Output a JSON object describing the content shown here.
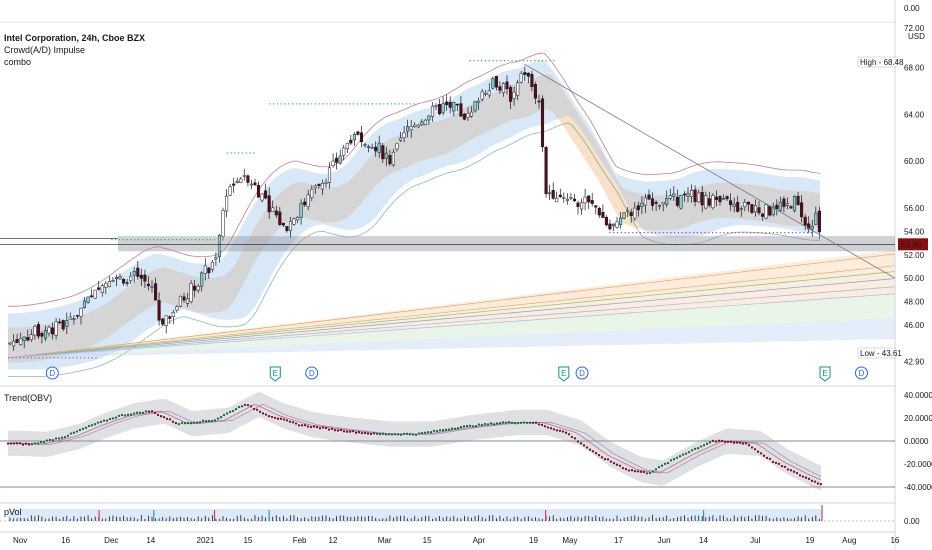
{
  "header": {
    "title": "Intel Corporation, 24h, Cboe BZX",
    "indicator_1": "Crowd(A/D) Impulse",
    "indicator_2": "combo"
  },
  "panes": {
    "trend_title": "Trend(OBV)",
    "vol_title": "pVol"
  },
  "price_axis": {
    "currency": "USD",
    "ticks": [
      "72.00",
      "68.00",
      "64.00",
      "60.00",
      "56.00",
      "54.00",
      "52.00",
      "50.00",
      "48.00",
      "46.00",
      "42.90"
    ],
    "top_tick": "0.00",
    "high_label": "High",
    "high_value": "68.48",
    "low_label": "Low",
    "low_value": "43.61",
    "last_price": "52.90",
    "last_price_color": "#880e0e"
  },
  "trend_axis": {
    "ticks": [
      "40.0000",
      "20.0000",
      "0.0000",
      "-20.0000",
      "-40.0000"
    ]
  },
  "vol_axis": {
    "ticks": [
      "0.00"
    ]
  },
  "time_axis": {
    "labels": [
      "Nov",
      "16",
      "Dec",
      "14",
      "2021",
      "15",
      "Feb",
      "12",
      "Mar",
      "15",
      "Apr",
      "19",
      "May",
      "17",
      "Jun",
      "14",
      "Jul",
      "19",
      "Aug",
      "16"
    ]
  },
  "events": [
    {
      "type": "D",
      "label": "D"
    },
    {
      "type": "E",
      "label": "E"
    },
    {
      "type": "D",
      "label": "D"
    },
    {
      "type": "E",
      "label": "E"
    },
    {
      "type": "D",
      "label": "D"
    },
    {
      "type": "E",
      "label": "E"
    },
    {
      "type": "D",
      "label": "D"
    }
  ],
  "colors": {
    "up_candle": "#ffffff",
    "up_candle_teal": "#7fd3d7",
    "down_candle": "#5c0a14",
    "band_blue": "#9cc2ea",
    "band_orange": "#f3c89a",
    "resistance_red": "#b2475c",
    "support_green": "#2c9b6a",
    "dotted_green": "#1fbf6a",
    "dotted_purple": "#b23cc0",
    "event_blue": "#2962ff",
    "event_green": "#089981"
  },
  "chart_data": [
    {
      "type": "candlestick",
      "title": "Intel Corporation, 24h, Cboe BZX",
      "ylabel": "USD",
      "x_range": [
        "2020-10-28",
        "2021-07-23"
      ],
      "ylim": [
        42.9,
        72
      ],
      "high": 68.48,
      "low": 43.61,
      "last": 52.9,
      "close_path": [
        {
          "date": "2020-10-28",
          "close": 44.4
        },
        {
          "date": "2020-11-05",
          "close": 45.3
        },
        {
          "date": "2020-11-16",
          "close": 46.0
        },
        {
          "date": "2020-11-25",
          "close": 48.4
        },
        {
          "date": "2020-12-01",
          "close": 50.3
        },
        {
          "date": "2020-12-04",
          "close": 50.0
        },
        {
          "date": "2020-12-10",
          "close": 50.2
        },
        {
          "date": "2020-12-15",
          "close": 49.0
        },
        {
          "date": "2020-12-17",
          "close": 46.2
        },
        {
          "date": "2020-12-23",
          "close": 47.8
        },
        {
          "date": "2021-01-04",
          "close": 51.5
        },
        {
          "date": "2021-01-08",
          "close": 57.5
        },
        {
          "date": "2021-01-14",
          "close": 59.0
        },
        {
          "date": "2021-01-21",
          "close": 56.6
        },
        {
          "date": "2021-01-27",
          "close": 54.2
        },
        {
          "date": "2021-02-05",
          "close": 57.2
        },
        {
          "date": "2021-02-12",
          "close": 59.5
        },
        {
          "date": "2021-02-19",
          "close": 62.6
        },
        {
          "date": "2021-02-26",
          "close": 61.4
        },
        {
          "date": "2021-03-03",
          "close": 60.0
        },
        {
          "date": "2021-03-08",
          "close": 62.5
        },
        {
          "date": "2021-03-15",
          "close": 64.0
        },
        {
          "date": "2021-03-22",
          "close": 64.8
        },
        {
          "date": "2021-03-29",
          "close": 63.6
        },
        {
          "date": "2021-04-01",
          "close": 65.6
        },
        {
          "date": "2021-04-06",
          "close": 67.0
        },
        {
          "date": "2021-04-12",
          "close": 65.4
        },
        {
          "date": "2021-04-16",
          "close": 67.7
        },
        {
          "date": "2021-04-21",
          "close": 65.0
        },
        {
          "date": "2021-04-23",
          "close": 57.5
        },
        {
          "date": "2021-04-29",
          "close": 57.1
        },
        {
          "date": "2021-05-04",
          "close": 56.6
        },
        {
          "date": "2021-05-10",
          "close": 56.0
        },
        {
          "date": "2021-05-14",
          "close": 54.2
        },
        {
          "date": "2021-05-20",
          "close": 55.4
        },
        {
          "date": "2021-05-27",
          "close": 56.8
        },
        {
          "date": "2021-06-03",
          "close": 56.6
        },
        {
          "date": "2021-06-10",
          "close": 57.0
        },
        {
          "date": "2021-06-17",
          "close": 56.6
        },
        {
          "date": "2021-06-24",
          "close": 56.2
        },
        {
          "date": "2021-06-30",
          "close": 55.9
        },
        {
          "date": "2021-07-07",
          "close": 55.7
        },
        {
          "date": "2021-07-14",
          "close": 56.6
        },
        {
          "date": "2021-07-19",
          "close": 54.4
        },
        {
          "date": "2021-07-21",
          "close": 55.6
        },
        {
          "date": "2021-07-23",
          "close": 52.9
        }
      ]
    },
    {
      "type": "line",
      "title": "Trend(OBV)",
      "ylim": [
        -40,
        40
      ],
      "series": [
        {
          "values_by_date": [
            {
              "date": "2020-10-28",
              "value": -2
            },
            {
              "date": "2020-11-05",
              "value": -3
            },
            {
              "date": "2020-11-16",
              "value": 4
            },
            {
              "date": "2020-11-25",
              "value": 14
            },
            {
              "date": "2020-12-04",
              "value": 22
            },
            {
              "date": "2020-12-14",
              "value": 26
            },
            {
              "date": "2020-12-23",
              "value": 15
            },
            {
              "date": "2021-01-04",
              "value": 18
            },
            {
              "date": "2021-01-14",
              "value": 32
            },
            {
              "date": "2021-01-22",
              "value": 22
            },
            {
              "date": "2021-02-01",
              "value": 14
            },
            {
              "date": "2021-02-12",
              "value": 10
            },
            {
              "date": "2021-02-26",
              "value": 6
            },
            {
              "date": "2021-03-12",
              "value": 6
            },
            {
              "date": "2021-03-26",
              "value": 12
            },
            {
              "date": "2021-04-09",
              "value": 16
            },
            {
              "date": "2021-04-19",
              "value": 16
            },
            {
              "date": "2021-04-30",
              "value": 7
            },
            {
              "date": "2021-05-10",
              "value": -12
            },
            {
              "date": "2021-05-20",
              "value": -25
            },
            {
              "date": "2021-05-27",
              "value": -28
            },
            {
              "date": "2021-06-07",
              "value": -12
            },
            {
              "date": "2021-06-17",
              "value": 0
            },
            {
              "date": "2021-06-28",
              "value": -2
            },
            {
              "date": "2021-07-07",
              "value": -18
            },
            {
              "date": "2021-07-16",
              "value": -30
            },
            {
              "date": "2021-07-23",
              "value": -38
            }
          ]
        }
      ]
    },
    {
      "type": "bar",
      "title": "pVol",
      "ylim": [
        0,
        1
      ],
      "spikes_by_date": [
        "2020-11-27",
        "2020-12-15",
        "2021-01-04",
        "2021-01-22",
        "2021-04-23",
        "2021-06-14",
        "2021-07-23"
      ]
    }
  ]
}
